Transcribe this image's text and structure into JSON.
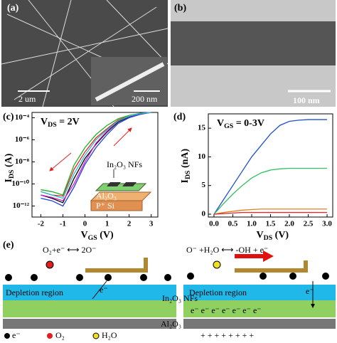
{
  "panels": {
    "a": "(a)",
    "b": "(b)",
    "c": "(c)",
    "d": "(d)",
    "e": "(e)"
  },
  "micrographs": {
    "a_scale": "2 um",
    "a_inset_scale": "200 nm",
    "b_scale": "100 nm"
  },
  "chart_data": [
    {
      "type": "line",
      "log_y": true,
      "annotation": {
        "main": "V",
        "sub": "DS",
        "rest": " = 2V"
      },
      "xlabel": {
        "main": "V",
        "sub": "GS",
        "rest": " (V)"
      },
      "ylabel": {
        "main": "I",
        "sub": "DS",
        "rest": " (A)"
      },
      "inset_labels": {
        "nfs": "In₂O₃ NFs",
        "oxide": "Al₂O₃",
        "si": "P⁺ Si"
      },
      "x": [
        -2,
        -1.5,
        -1,
        -0.5,
        0,
        0.5,
        1,
        1.5,
        2,
        2.5,
        3
      ],
      "series": [
        {
          "color": "#000000",
          "values": [
            1e-11,
            5e-12,
            2e-12,
            3e-10,
            2e-08,
            4e-07,
            5e-06,
            4e-05,
            0.00012,
            0.00022,
            0.0003
          ]
        },
        {
          "color": "#e02020",
          "values": [
            2e-11,
            1e-11,
            8e-12,
            2e-09,
            8e-08,
            1.5e-06,
            1e-05,
            6e-05,
            0.00015,
            0.00025,
            0.0003
          ]
        },
        {
          "color": "#2040e0",
          "values": [
            5e-12,
            3e-12,
            1e-12,
            5e-11,
            6e-09,
            2e-07,
            3e-06,
            3e-05,
            0.0001,
            0.0002,
            0.0003
          ]
        },
        {
          "color": "#20b020",
          "values": [
            3e-11,
            2e-11,
            1e-11,
            5e-09,
            2e-07,
            3e-06,
            2e-05,
            8e-05,
            0.00016,
            0.00025,
            0.0003
          ]
        },
        {
          "color": "#d020d0",
          "values": [
            1e-11,
            6e-12,
            3e-12,
            1e-10,
            1e-08,
            5e-07,
            6e-06,
            5e-05,
            0.00013,
            0.00023,
            0.0003
          ]
        },
        {
          "color": "#20c0d0",
          "values": [
            2e-11,
            1e-11,
            5e-12,
            8e-10,
            4e-08,
            1e-06,
            8e-06,
            5e-05,
            0.00014,
            0.00024,
            0.0003
          ]
        }
      ],
      "xlim": [
        -2.4,
        3.3
      ],
      "ylim": [
        1e-13,
        0.0003
      ],
      "xticks": [
        -2,
        -1,
        0,
        1,
        2,
        3
      ],
      "yticks": [
        {
          "value": 0.0001,
          "label": "10⁻⁴"
        },
        {
          "value": 1e-06,
          "label": "10⁻⁶"
        },
        {
          "value": 1e-08,
          "label": "10⁻⁸"
        },
        {
          "value": 1e-10,
          "label": "10⁻¹⁰"
        },
        {
          "value": 1e-12,
          "label": "10⁻¹²"
        }
      ]
    },
    {
      "type": "line",
      "log_y": false,
      "annotation": {
        "main": "V",
        "sub": "GS",
        "rest": " = 0-3V"
      },
      "xlabel": {
        "main": "V",
        "sub": "DS",
        "rest": " (V)"
      },
      "ylabel": {
        "main": "I",
        "sub": "DS",
        "rest": " (nA)"
      },
      "x": [
        0,
        0.25,
        0.5,
        0.75,
        1,
        1.25,
        1.5,
        1.75,
        2,
        2.25,
        2.5,
        2.75,
        3
      ],
      "series": [
        {
          "color": "#2050d0",
          "values": [
            0,
            2.5,
            5,
            7.5,
            10,
            12,
            14,
            15.5,
            16.2,
            16.4,
            16.5,
            16.5,
            16.5
          ]
        },
        {
          "color": "#30c060",
          "values": [
            0,
            1.8,
            3.5,
            5,
            6.3,
            7.2,
            7.7,
            7.9,
            8,
            8,
            8,
            8,
            8
          ]
        },
        {
          "color": "#e08020",
          "values": [
            0,
            0.3,
            0.5,
            0.7,
            0.8,
            0.9,
            0.9,
            0.9,
            0.9,
            0.9,
            0.9,
            0.9,
            0.9
          ]
        },
        {
          "color": "#d03030",
          "values": [
            0,
            0.1,
            0.2,
            0.3,
            0.3,
            0.3,
            0.3,
            0.3,
            0.3,
            0.3,
            0.3,
            0.3,
            0.3
          ]
        }
      ],
      "xlim": [
        -0.15,
        3.15
      ],
      "ylim": [
        -0.5,
        17.5
      ],
      "xticks": [
        {
          "value": 0,
          "label": "0.0"
        },
        0.5,
        {
          "value": 1,
          "label": "1.0"
        },
        1.5,
        {
          "value": 2,
          "label": "2.0"
        },
        2.5,
        {
          "value": 3,
          "label": "3.0"
        }
      ],
      "yticks": [
        0,
        5,
        10,
        15
      ]
    }
  ],
  "diagram": {
    "left_reaction": "O₂+e⁻ ⟷ 2O⁻",
    "right_reaction": "O⁻ +H₂O ⟷ -OH + e⁻",
    "depletion_left": "Depletion region",
    "depletion_right": "Depletion region",
    "electron_left": "e⁻",
    "electron_right": "e⁻",
    "electrons_row": "e⁻  e⁻  e⁻  e⁻  e⁻  e⁻  e⁻",
    "layer_nfs": "In₂O₃ NFs",
    "layer_oxide": "Al₂O₃",
    "charges": "+ + + + + + + +",
    "legend_e": "e⁻",
    "legend_o2": "O₂",
    "legend_h2o": "H₂O"
  }
}
